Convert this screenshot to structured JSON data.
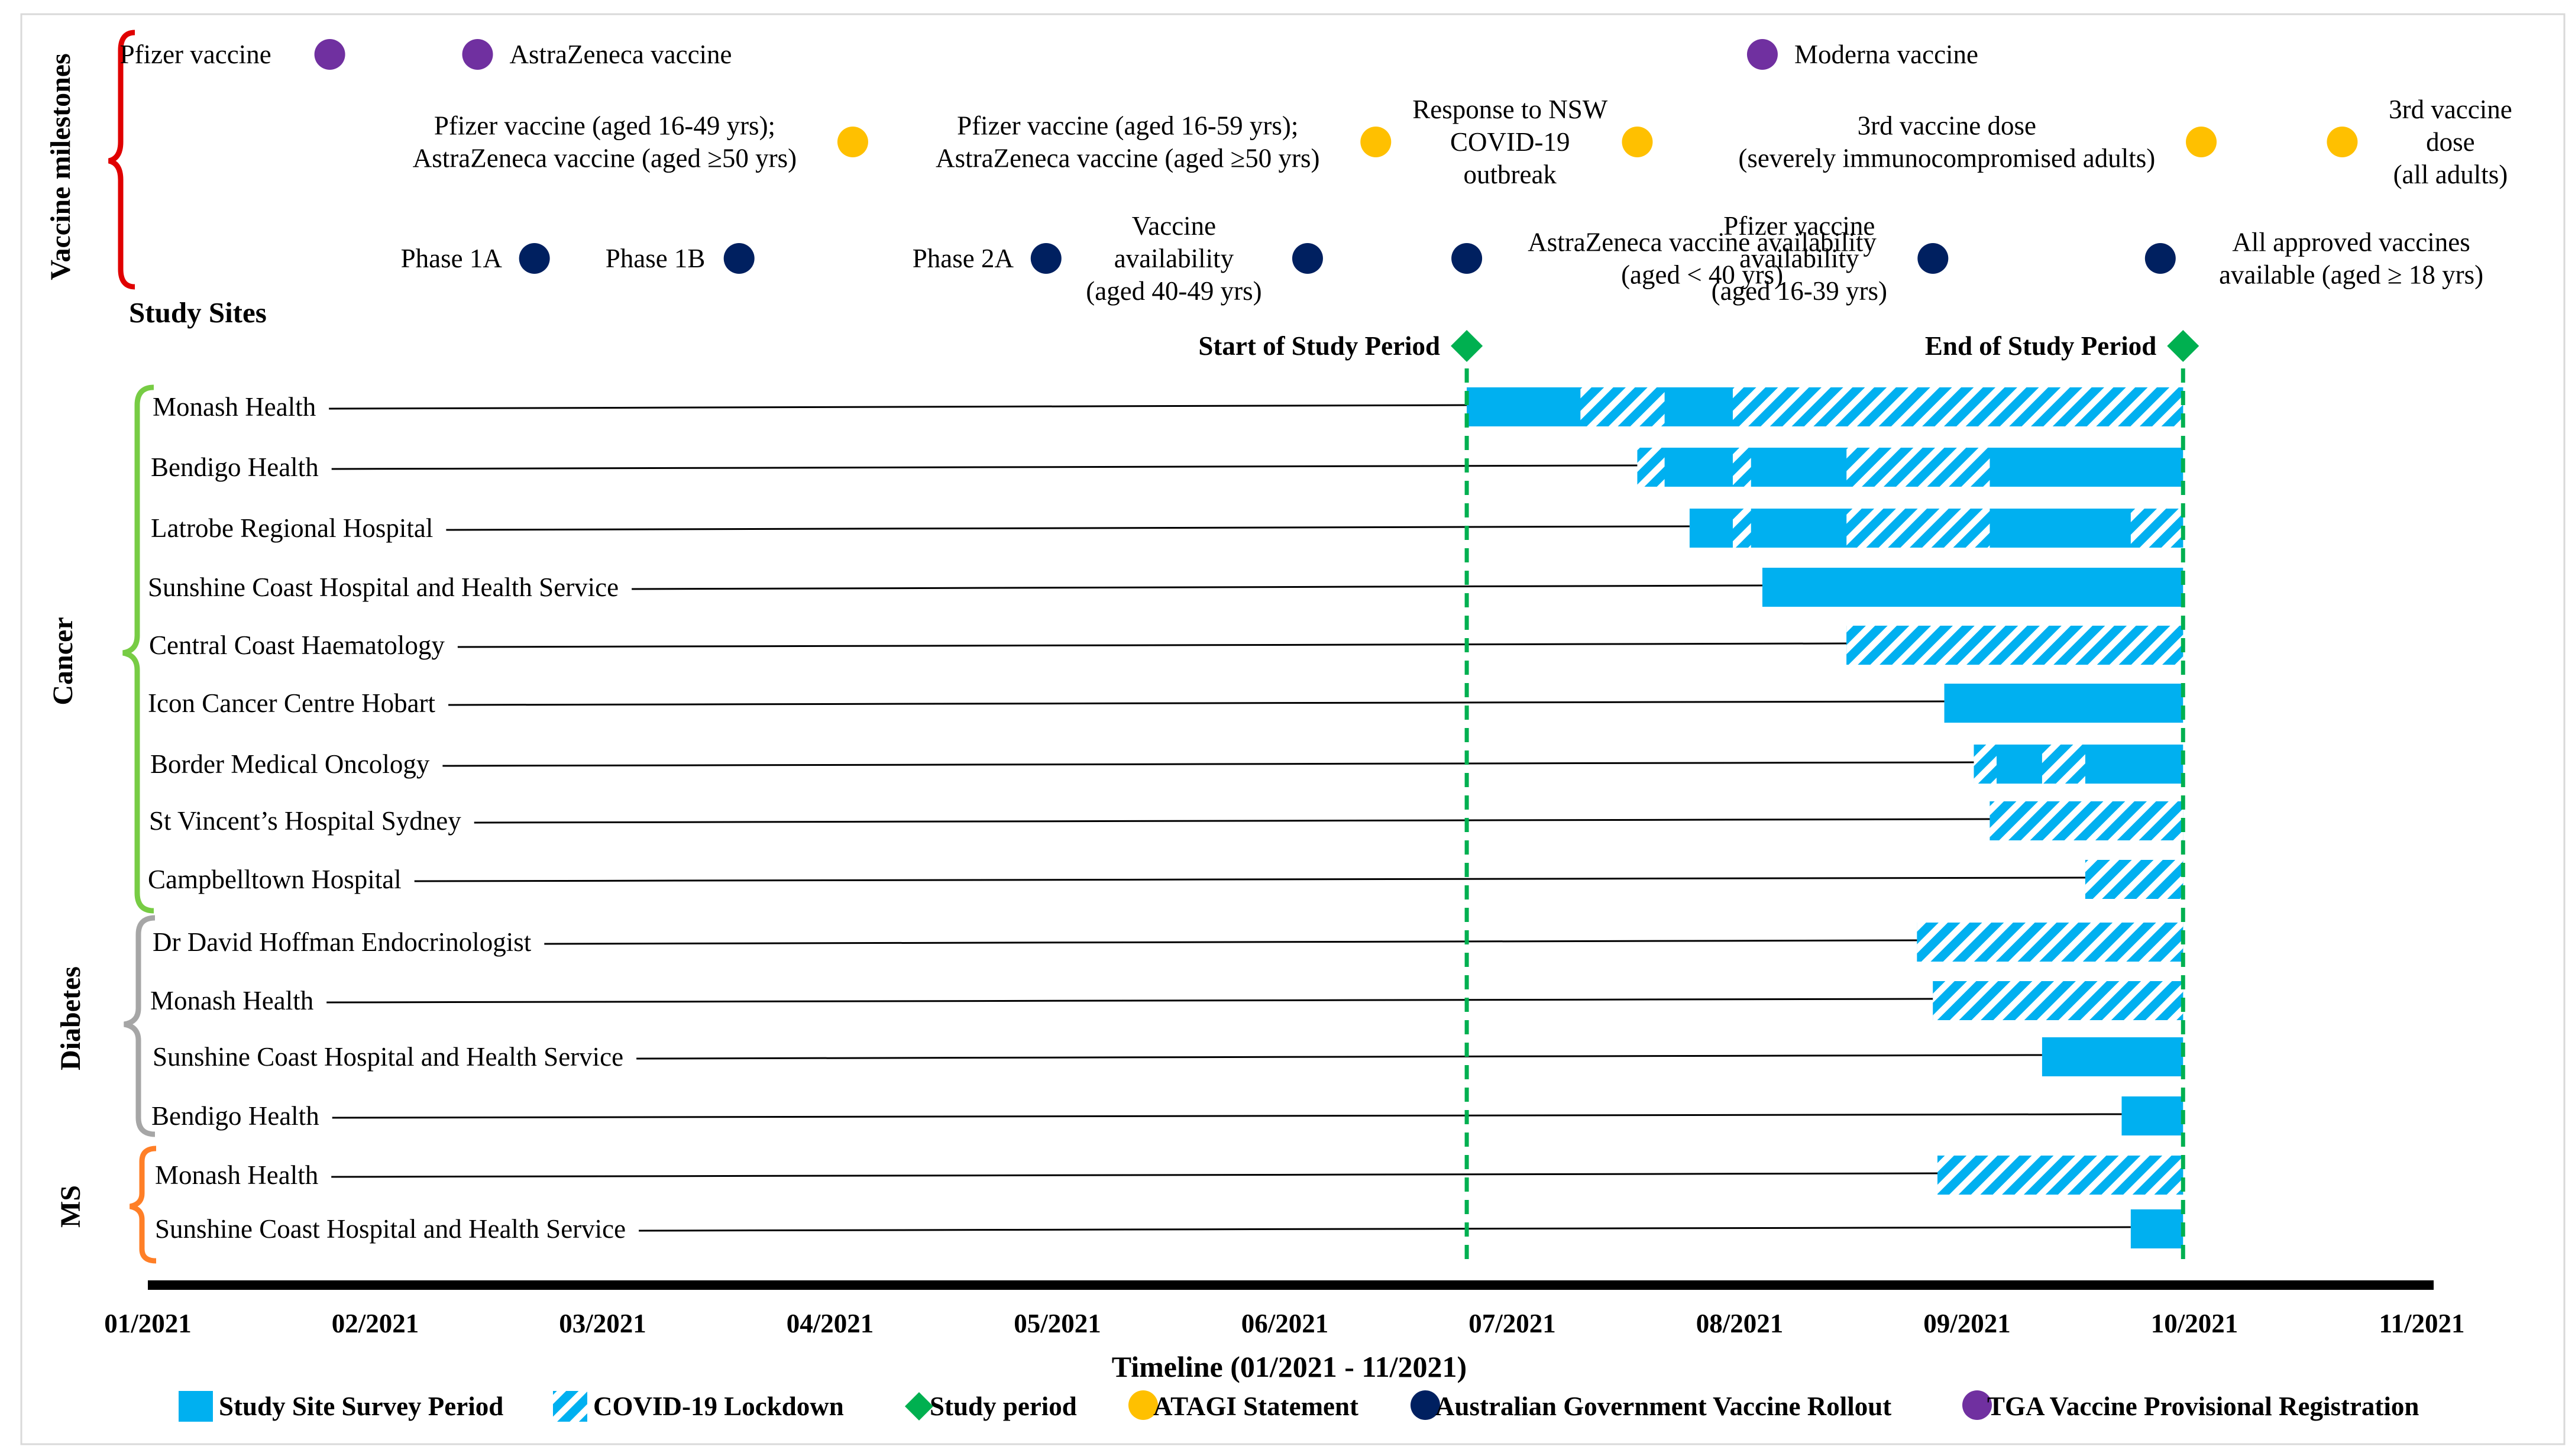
{
  "chart_data": {
    "type": "gantt",
    "title": "Timeline (01/2021 - 11/2021)",
    "xlabel": "Timeline (01/2021 - 11/2021)",
    "xlim": [
      0,
      10
    ],
    "x_unit": "months since 01/2021",
    "month_labels": [
      "01/2021",
      "02/2021",
      "03/2021",
      "04/2021",
      "05/2021",
      "06/2021",
      "07/2021",
      "08/2021",
      "09/2021",
      "10/2021",
      "11/2021"
    ],
    "study_sites_heading": "Study Sites",
    "vaccine_milestones_label": "Vaccine milestones",
    "study_period": {
      "start": 5.8,
      "end": 8.95,
      "start_label": "Start of Study Period",
      "end_label": "End of Study Period"
    },
    "groups": [
      {
        "name": "Cancer",
        "color": "#77cc44",
        "first_row": 0,
        "last_row": 8
      },
      {
        "name": "Diabetes",
        "color": "#a6a6a6",
        "first_row": 9,
        "last_row": 12
      },
      {
        "name": "MS",
        "color": "#ff7f27",
        "first_row": 13,
        "last_row": 14
      }
    ],
    "rows": [
      {
        "site": "Monash Health",
        "group": "Cancer",
        "survey": [
          5.8,
          8.95
        ],
        "lockdown": [
          [
            6.3,
            6.67
          ],
          [
            6.97,
            8.95
          ]
        ]
      },
      {
        "site": "Bendigo Health",
        "group": "Cancer",
        "survey": [
          6.55,
          8.95
        ],
        "lockdown": [
          [
            6.55,
            6.67
          ],
          [
            6.97,
            7.05
          ],
          [
            7.47,
            8.1
          ]
        ]
      },
      {
        "site": "Latrobe Regional Hospital",
        "group": "Cancer",
        "survey": [
          6.78,
          8.95
        ],
        "lockdown": [
          [
            6.97,
            7.05
          ],
          [
            7.47,
            8.1
          ],
          [
            8.72,
            8.95
          ]
        ]
      },
      {
        "site": "Sunshine Coast Hospital and Health Service",
        "group": "Cancer",
        "survey": [
          7.1,
          8.95
        ],
        "lockdown": []
      },
      {
        "site": "Central Coast Haematology",
        "group": "Cancer",
        "survey": [
          7.47,
          8.95
        ],
        "lockdown": [
          [
            7.47,
            8.95
          ]
        ]
      },
      {
        "site": "Icon Cancer Centre Hobart",
        "group": "Cancer",
        "survey": [
          7.9,
          8.95
        ],
        "lockdown": []
      },
      {
        "site": "Border Medical Oncology",
        "group": "Cancer",
        "survey": [
          8.03,
          8.95
        ],
        "lockdown": [
          [
            8.03,
            8.13
          ],
          [
            8.33,
            8.52
          ]
        ]
      },
      {
        "site": "St Vincent’s Hospital Sydney",
        "group": "Cancer",
        "survey": [
          8.1,
          8.95
        ],
        "lockdown": [
          [
            8.1,
            8.95
          ]
        ]
      },
      {
        "site": "Campbelltown Hospital",
        "group": "Cancer",
        "survey": [
          8.52,
          8.95
        ],
        "lockdown": [
          [
            8.52,
            8.95
          ]
        ]
      },
      {
        "site": "Dr David Hoffman Endocrinologist",
        "group": "Diabetes",
        "survey": [
          7.78,
          8.95
        ],
        "lockdown": [
          [
            7.78,
            8.95
          ]
        ]
      },
      {
        "site": "Monash Health",
        "group": "Diabetes",
        "survey": [
          7.85,
          8.95
        ],
        "lockdown": [
          [
            7.85,
            8.95
          ]
        ]
      },
      {
        "site": "Sunshine Coast Hospital and Health Service",
        "group": "Diabetes",
        "survey": [
          8.33,
          8.95
        ],
        "lockdown": []
      },
      {
        "site": "Bendigo Health",
        "group": "Diabetes",
        "survey": [
          8.68,
          8.95
        ],
        "lockdown": []
      },
      {
        "site": "Monash Health",
        "group": "MS",
        "survey": [
          7.87,
          8.95
        ],
        "lockdown": [
          [
            7.87,
            8.95
          ]
        ]
      },
      {
        "site": "Sunshine Coast Hospital and Health Service",
        "group": "MS",
        "survey": [
          8.72,
          8.95
        ],
        "lockdown": []
      }
    ],
    "milestones": [
      {
        "type": "tga",
        "x": 0.8,
        "marker_side": "right",
        "lines": [
          "Pfizer vaccine"
        ]
      },
      {
        "type": "tga",
        "x": 1.45,
        "marker_side": "left",
        "lines": [
          "AstraZeneca vaccine"
        ]
      },
      {
        "type": "tga",
        "x": 7.1,
        "marker_side": "left",
        "lines": [
          "Moderna vaccine"
        ]
      },
      {
        "type": "atagi",
        "x": 3.1,
        "marker_side": "right",
        "lines": [
          "Pfizer vaccine (aged 16-49 yrs);",
          "AstraZeneca vaccine (aged ≥50 yrs)"
        ]
      },
      {
        "type": "atagi",
        "x": 5.4,
        "marker_side": "right",
        "lines": [
          "Pfizer vaccine (aged 16-59 yrs);",
          "AstraZeneca vaccine (aged ≥50 yrs)"
        ]
      },
      {
        "type": "atagi",
        "x": 6.55,
        "marker_side": "right",
        "lines": [
          "Response to NSW",
          "COVID-19",
          "outbreak"
        ]
      },
      {
        "type": "atagi",
        "x": 9.03,
        "marker_side": "right",
        "lines": [
          "3rd vaccine dose",
          "(severely immunocompromised adults)"
        ]
      },
      {
        "type": "atagi",
        "x": 9.65,
        "marker_side": "left",
        "lines": [
          "3rd vaccine",
          "dose",
          "(all adults)"
        ]
      },
      {
        "type": "gov",
        "x": 1.7,
        "marker_side": "right",
        "lines": [
          "Phase 1A"
        ]
      },
      {
        "type": "gov",
        "x": 2.6,
        "marker_side": "right",
        "lines": [
          "Phase 1B"
        ]
      },
      {
        "type": "gov",
        "x": 3.95,
        "marker_side": "right",
        "lines": [
          "Phase 2A"
        ]
      },
      {
        "type": "gov",
        "x": 5.1,
        "marker_side": "right",
        "lines": [
          "Vaccine",
          "availability",
          "(aged 40-49 yrs)"
        ]
      },
      {
        "type": "gov",
        "x": 5.8,
        "marker_side": "left",
        "lines": [
          "AstraZeneca vaccine availability",
          "(aged < 40 yrs)"
        ]
      },
      {
        "type": "gov",
        "x": 7.85,
        "marker_side": "right",
        "lines": [
          "Pfizer vaccine",
          "availability",
          "(aged 16-39 yrs)"
        ]
      },
      {
        "type": "gov",
        "x": 8.85,
        "marker_side": "left",
        "lines": [
          "All approved vaccines",
          "available (aged ≥ 18 yrs)"
        ]
      }
    ],
    "legend": [
      {
        "key": "survey",
        "label": "Study Site Survey Period"
      },
      {
        "key": "lockdown",
        "label": "COVID-19 Lockdown"
      },
      {
        "key": "study",
        "label": "Study period"
      },
      {
        "key": "atagi",
        "label": "ATAGI Statement"
      },
      {
        "key": "gov",
        "label": "Australian Government Vaccine Rollout"
      },
      {
        "key": "tga",
        "label": "TGA Vaccine Provisional Registration"
      }
    ],
    "colors": {
      "survey": "#00b0f0",
      "lockdown_stripe": "#00b0f0",
      "study": "#00b050",
      "atagi": "#ffc000",
      "gov": "#002060",
      "tga": "#7030a0",
      "vaccine_brace": "#e00000"
    }
  }
}
